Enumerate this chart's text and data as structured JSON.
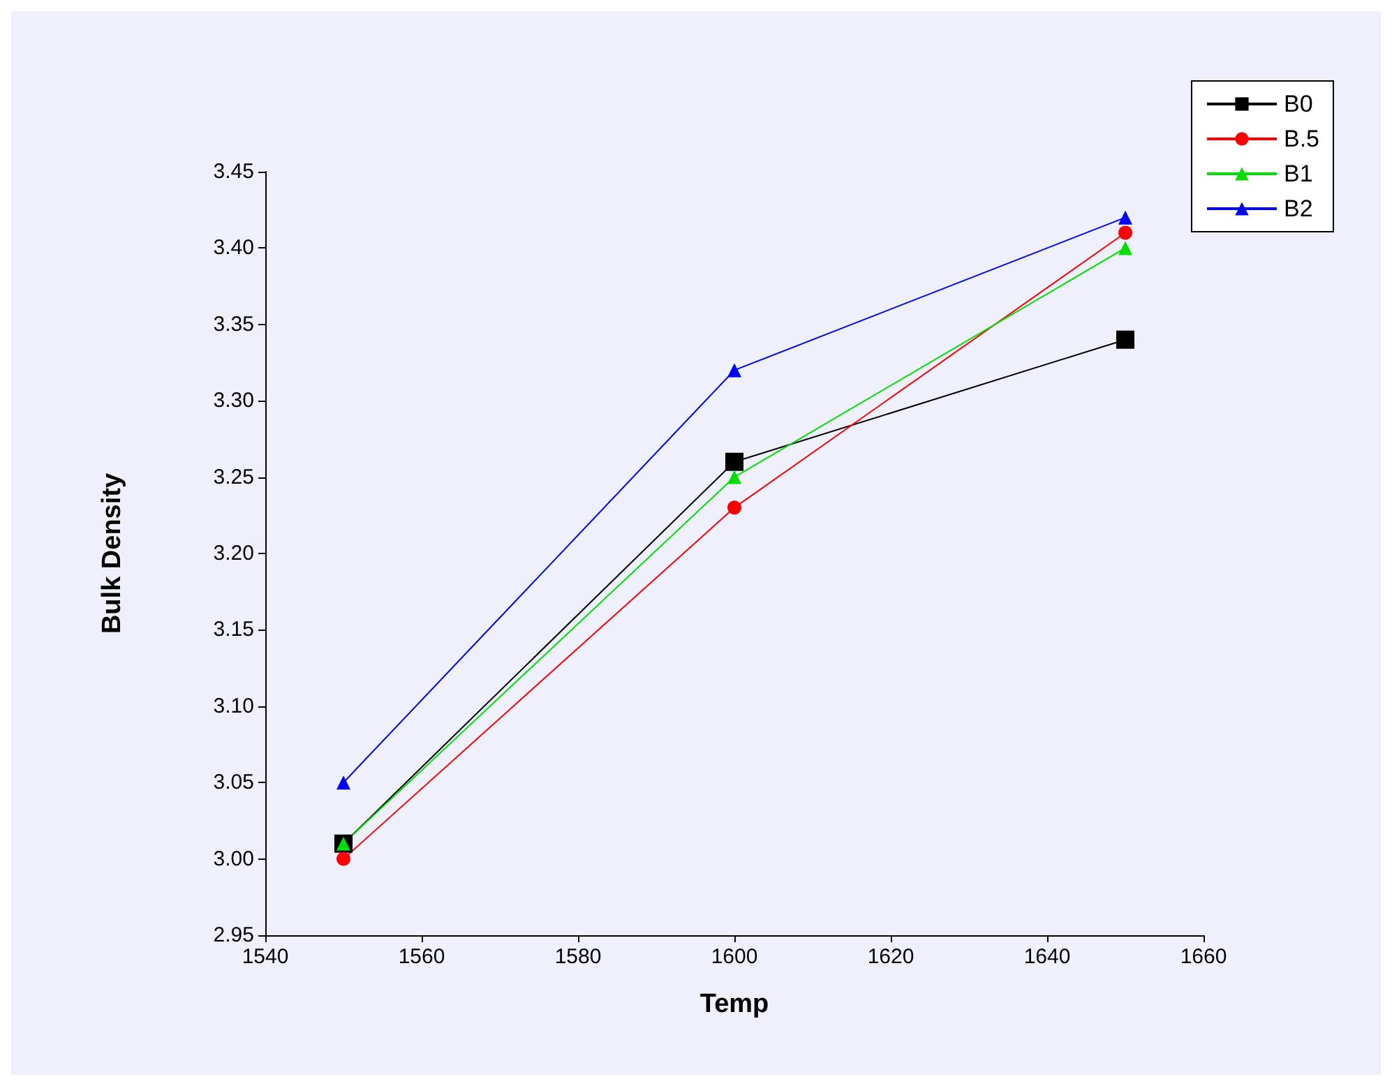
{
  "chart_data": {
    "type": "line",
    "xlabel": "Temp",
    "ylabel": "Bulk Density",
    "x": [
      1550,
      1600,
      1650
    ],
    "series": [
      {
        "name": "B0",
        "color": "#000000",
        "marker": "square",
        "values": [
          3.01,
          3.26,
          3.34
        ]
      },
      {
        "name": "B.5",
        "color": "#ff0000",
        "marker": "circle",
        "values": [
          3.0,
          3.23,
          3.41
        ]
      },
      {
        "name": "B1",
        "color": "#00e000",
        "marker": "triangle",
        "values": [
          3.01,
          3.25,
          3.4
        ]
      },
      {
        "name": "B2",
        "color": "#0000ff",
        "marker": "triangle",
        "values": [
          3.05,
          3.32,
          3.42
        ]
      }
    ],
    "xlim": [
      1540,
      1660
    ],
    "xticks": [
      1540,
      1560,
      1580,
      1600,
      1620,
      1640,
      1660
    ],
    "ylim": [
      2.95,
      3.45
    ],
    "yticks": [
      {
        "value": 2.95,
        "label": "2.95"
      },
      {
        "value": 3.0,
        "label": "3.00"
      },
      {
        "value": 3.05,
        "label": "3.05"
      },
      {
        "value": 3.1,
        "label": "3.10"
      },
      {
        "value": 3.15,
        "label": "3.15"
      },
      {
        "value": 3.2,
        "label": "3.20"
      },
      {
        "value": 3.25,
        "label": "3.25"
      },
      {
        "value": 3.3,
        "label": "3.30"
      },
      {
        "value": 3.35,
        "label": "3.35"
      },
      {
        "value": 3.4,
        "label": "3.40"
      },
      {
        "value": 3.45,
        "label": "3.45"
      }
    ],
    "grid": false,
    "legend": "top right",
    "line_style": "solid"
  }
}
